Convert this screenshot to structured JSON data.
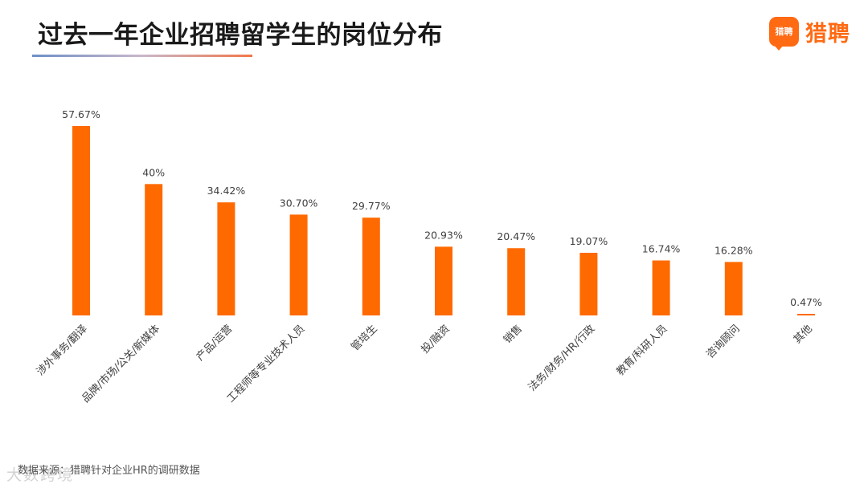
{
  "header": {
    "title": "过去一年企业招聘留学生的岗位分布",
    "logo_badge": "猎聘",
    "logo_text": "猎聘"
  },
  "footnote": "数据来源：猎聘针对企业HR的调研数据",
  "watermark": "大数跨境",
  "colors": {
    "bar": "#ff6a00",
    "label": "#404040",
    "brand": "#ff6a13"
  },
  "chart_data": {
    "type": "bar",
    "title": "过去一年企业招聘留学生的岗位分布",
    "xlabel": "",
    "ylabel": "",
    "ylim": [
      0,
      60
    ],
    "grid": false,
    "categories": [
      "涉外事务/翻译",
      "品牌/市场/公关/新媒体",
      "产品/运营",
      "工程师等专业技术人员",
      "管培生",
      "投/融资",
      "销售",
      "法务/财务/HR/行政",
      "教育/科研人员",
      "咨询顾问",
      "其他"
    ],
    "values": [
      57.67,
      40,
      34.42,
      30.7,
      29.77,
      20.93,
      20.47,
      19.07,
      16.74,
      16.28,
      0.47
    ],
    "data_labels": [
      "57.67%",
      "40%",
      "34.42%",
      "30.70%",
      "29.77%",
      "20.93%",
      "20.47%",
      "19.07%",
      "16.74%",
      "16.28%",
      "0.47%"
    ]
  }
}
